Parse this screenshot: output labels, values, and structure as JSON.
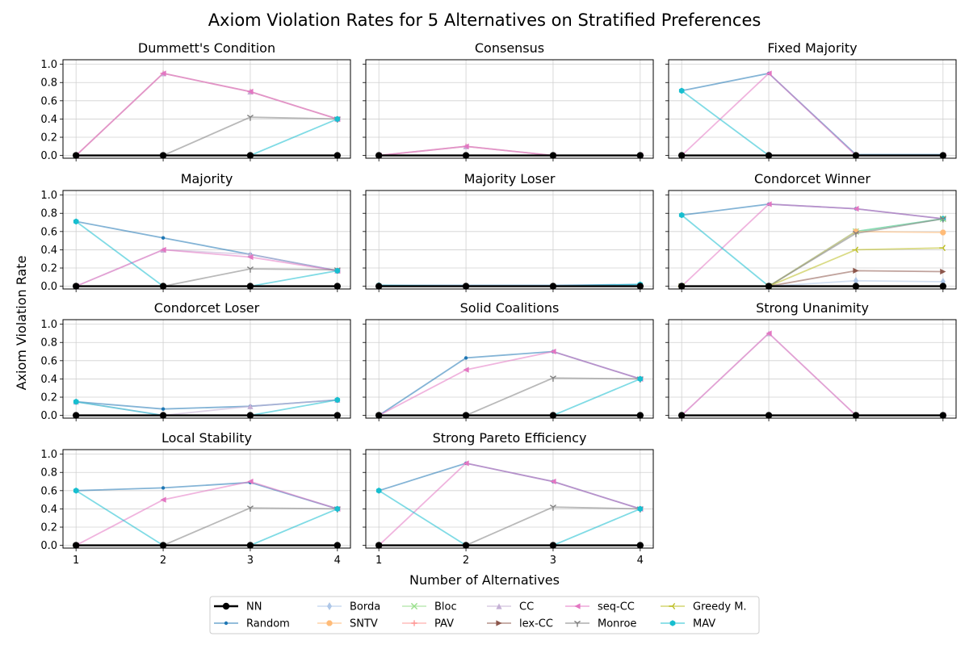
{
  "figure": {
    "title": "Axiom Violation Rates for 5 Alternatives on Stratified Preferences",
    "xlabel": "Number of Alternatives",
    "ylabel": "Axiom Violation Rate"
  },
  "legend": [
    {
      "name": "NN",
      "color": "#000000",
      "marker": "circle"
    },
    {
      "name": "Random",
      "color": "#1f77b4",
      "marker": "point"
    },
    {
      "name": "Borda",
      "color": "#aec7e8",
      "marker": "thin-diamond"
    },
    {
      "name": "SNTV",
      "color": "#ffbb78",
      "marker": "octagon"
    },
    {
      "name": "Bloc",
      "color": "#98df8a",
      "marker": "x"
    },
    {
      "name": "PAV",
      "color": "#ff9896",
      "marker": "plus"
    },
    {
      "name": "CC",
      "color": "#c5b0d5",
      "marker": "triangle-up"
    },
    {
      "name": "lex-CC",
      "color": "#8c564b",
      "marker": "triangle-right"
    },
    {
      "name": "seq-CC",
      "color": "#e377c2",
      "marker": "triangle-left"
    },
    {
      "name": "Monroe",
      "color": "#7f7f7f",
      "marker": "tri-down"
    },
    {
      "name": "Greedy M.",
      "color": "#bcbd22",
      "marker": "tri-left"
    },
    {
      "name": "MAV",
      "color": "#17becf",
      "marker": "hexagon"
    }
  ],
  "chart_data": [
    {
      "type": "line",
      "title": "Dummett's Condition",
      "x": [
        1,
        2,
        3,
        4
      ],
      "ylim": [
        0,
        1
      ],
      "yticks": [
        "0.0",
        "0.2",
        "0.4",
        "0.6",
        "0.8",
        "1.0"
      ],
      "series": [
        {
          "name": "PAV",
          "values": [
            0,
            0.9,
            0.7,
            0.4
          ]
        },
        {
          "name": "CC",
          "values": [
            0,
            0.9,
            0.7,
            0.4
          ]
        },
        {
          "name": "seq-CC",
          "values": [
            0,
            0.9,
            0.7,
            0.4
          ]
        },
        {
          "name": "Monroe",
          "values": [
            0,
            0,
            0.42,
            0.4
          ]
        },
        {
          "name": "MAV",
          "values": [
            0,
            0,
            0,
            0.4
          ]
        },
        {
          "name": "NN",
          "values": [
            0,
            0,
            0,
            0
          ]
        }
      ]
    },
    {
      "type": "line",
      "title": "Consensus",
      "x": [
        1,
        2,
        3,
        4
      ],
      "ylim": [
        0,
        1
      ],
      "series": [
        {
          "name": "PAV",
          "values": [
            0,
            0.1,
            0,
            0
          ]
        },
        {
          "name": "CC",
          "values": [
            0,
            0.1,
            0,
            0
          ]
        },
        {
          "name": "seq-CC",
          "values": [
            0,
            0.1,
            0,
            0
          ]
        },
        {
          "name": "NN",
          "values": [
            0,
            0,
            0,
            0
          ]
        }
      ]
    },
    {
      "type": "line",
      "title": "Fixed Majority",
      "x": [
        1,
        2,
        3,
        4
      ],
      "ylim": [
        0,
        1
      ],
      "series": [
        {
          "name": "Random",
          "values": [
            0.71,
            0.9,
            0.01,
            0.01
          ]
        },
        {
          "name": "seq-CC",
          "values": [
            0,
            0.9,
            0,
            0
          ]
        },
        {
          "name": "MAV",
          "values": [
            0.71,
            0,
            0,
            0
          ]
        },
        {
          "name": "NN",
          "values": [
            0,
            0,
            0,
            0
          ]
        }
      ]
    },
    {
      "type": "line",
      "title": "Majority",
      "x": [
        1,
        2,
        3,
        4
      ],
      "ylim": [
        0,
        1
      ],
      "yticks": [
        "0.0",
        "0.2",
        "0.4",
        "0.6",
        "0.8",
        "1.0"
      ],
      "series": [
        {
          "name": "Random",
          "values": [
            0.71,
            0.53,
            0.35,
            0.17
          ]
        },
        {
          "name": "CC",
          "values": [
            0,
            0.4,
            0.35,
            0.17
          ]
        },
        {
          "name": "seq-CC",
          "values": [
            0,
            0.4,
            0.32,
            0.17
          ]
        },
        {
          "name": "Monroe",
          "values": [
            0,
            0,
            0.19,
            0.18
          ]
        },
        {
          "name": "MAV",
          "values": [
            0.71,
            0,
            0,
            0.17
          ]
        },
        {
          "name": "NN",
          "values": [
            0,
            0,
            0,
            0
          ]
        }
      ]
    },
    {
      "type": "line",
      "title": "Majority Loser",
      "x": [
        1,
        2,
        3,
        4
      ],
      "ylim": [
        0,
        1
      ],
      "series": [
        {
          "name": "Random",
          "values": [
            0.01,
            0.01,
            0.01,
            0.02
          ]
        },
        {
          "name": "MAV",
          "values": [
            0.01,
            0,
            0,
            0.02
          ]
        },
        {
          "name": "NN",
          "values": [
            0,
            0,
            0,
            0
          ]
        }
      ]
    },
    {
      "type": "line",
      "title": "Condorcet Winner",
      "x": [
        1,
        2,
        3,
        4
      ],
      "ylim": [
        0,
        1
      ],
      "series": [
        {
          "name": "Random",
          "values": [
            0.78,
            0.9,
            0.85,
            0.74
          ]
        },
        {
          "name": "seq-CC",
          "values": [
            0,
            0.9,
            0.85,
            0.74
          ]
        },
        {
          "name": "MAV",
          "values": [
            0.78,
            0,
            0.6,
            0.74
          ]
        },
        {
          "name": "Bloc",
          "values": [
            0,
            0,
            0.6,
            0.74
          ]
        },
        {
          "name": "SNTV",
          "values": [
            0,
            0,
            0.6,
            0.59
          ]
        },
        {
          "name": "Monroe",
          "values": [
            0,
            0,
            0.58,
            0.74
          ]
        },
        {
          "name": "Greedy M.",
          "values": [
            0,
            0,
            0.4,
            0.42
          ]
        },
        {
          "name": "lex-CC",
          "values": [
            0,
            0,
            0.17,
            0.16
          ]
        },
        {
          "name": "Borda",
          "values": [
            0,
            0,
            0.06,
            0.05
          ]
        },
        {
          "name": "NN",
          "values": [
            0,
            0,
            0,
            0
          ]
        }
      ]
    },
    {
      "type": "line",
      "title": "Condorcet Loser",
      "x": [
        1,
        2,
        3,
        4
      ],
      "ylim": [
        0,
        1
      ],
      "yticks": [
        "0.0",
        "0.2",
        "0.4",
        "0.6",
        "0.8",
        "1.0"
      ],
      "series": [
        {
          "name": "Random",
          "values": [
            0.15,
            0.07,
            0.1,
            0.17
          ]
        },
        {
          "name": "CC",
          "values": [
            0.15,
            0,
            0.1,
            0.17
          ]
        },
        {
          "name": "MAV",
          "values": [
            0.15,
            0,
            0,
            0.17
          ]
        },
        {
          "name": "NN",
          "values": [
            0,
            0,
            0,
            0
          ]
        }
      ]
    },
    {
      "type": "line",
      "title": "Solid Coalitions",
      "x": [
        1,
        2,
        3,
        4
      ],
      "ylim": [
        0,
        1
      ],
      "series": [
        {
          "name": "Random",
          "values": [
            0,
            0.63,
            0.7,
            0.4
          ]
        },
        {
          "name": "seq-CC",
          "values": [
            0,
            0.5,
            0.7,
            0.4
          ]
        },
        {
          "name": "Monroe",
          "values": [
            0,
            0,
            0.41,
            0.4
          ]
        },
        {
          "name": "MAV",
          "values": [
            0,
            0,
            0,
            0.4
          ]
        },
        {
          "name": "NN",
          "values": [
            0,
            0,
            0,
            0
          ]
        }
      ]
    },
    {
      "type": "line",
      "title": "Strong Unanimity",
      "x": [
        1,
        2,
        3,
        4
      ],
      "ylim": [
        0,
        1
      ],
      "series": [
        {
          "name": "CC",
          "values": [
            0,
            0.9,
            0,
            0
          ]
        },
        {
          "name": "seq-CC",
          "values": [
            0,
            0.9,
            0,
            0
          ]
        },
        {
          "name": "NN",
          "values": [
            0,
            0,
            0,
            0
          ]
        }
      ]
    },
    {
      "type": "line",
      "title": "Local Stability",
      "x": [
        1,
        2,
        3,
        4
      ],
      "ylim": [
        0,
        1
      ],
      "yticks": [
        "0.0",
        "0.2",
        "0.4",
        "0.6",
        "0.8",
        "1.0"
      ],
      "xticks": [
        "1",
        "2",
        "3",
        "4"
      ],
      "series": [
        {
          "name": "Random",
          "values": [
            0.6,
            0.63,
            0.69,
            0.4
          ]
        },
        {
          "name": "seq-CC",
          "values": [
            0,
            0.5,
            0.7,
            0.4
          ]
        },
        {
          "name": "Monroe",
          "values": [
            0,
            0,
            0.41,
            0.4
          ]
        },
        {
          "name": "MAV",
          "values": [
            0.6,
            0,
            0,
            0.4
          ]
        },
        {
          "name": "NN",
          "values": [
            0,
            0,
            0,
            0
          ]
        }
      ]
    },
    {
      "type": "line",
      "title": "Strong Pareto Efficiency",
      "x": [
        1,
        2,
        3,
        4
      ],
      "ylim": [
        0,
        1
      ],
      "xticks": [
        "1",
        "2",
        "3",
        "4"
      ],
      "series": [
        {
          "name": "Random",
          "values": [
            0.6,
            0.9,
            0.7,
            0.4
          ]
        },
        {
          "name": "seq-CC",
          "values": [
            0,
            0.9,
            0.7,
            0.4
          ]
        },
        {
          "name": "Monroe",
          "values": [
            0,
            0,
            0.42,
            0.4
          ]
        },
        {
          "name": "MAV",
          "values": [
            0.6,
            0,
            0,
            0.4
          ]
        },
        {
          "name": "NN",
          "values": [
            0,
            0,
            0,
            0
          ]
        }
      ]
    }
  ]
}
